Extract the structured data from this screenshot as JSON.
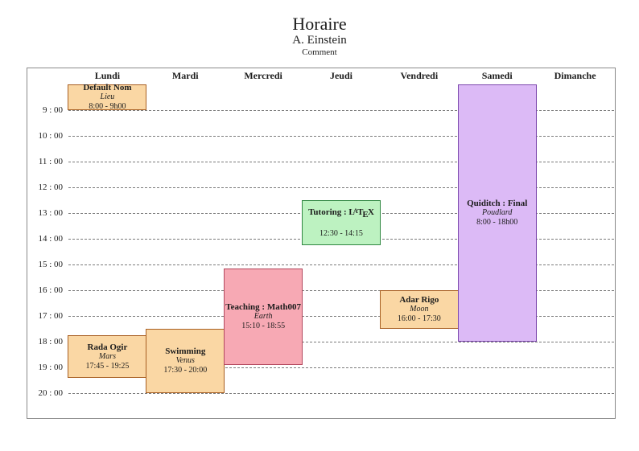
{
  "header": {
    "title": "Horaire",
    "author": "A. Einstein",
    "comment": "Comment"
  },
  "colors": {
    "frame_border": "#8a8a8a",
    "grid_line": "#7a7a7a",
    "text": "#1c1c1c",
    "orange_fill": "#fad7a4",
    "orange_border": "#a85f22",
    "pink_fill": "#f7a9b4",
    "pink_border": "#b3485e",
    "green_fill": "#bdf2c1",
    "green_border": "#2f8741",
    "purple_fill": "#dcbaf6",
    "purple_border": "#7c48ad"
  },
  "schedule": {
    "days": [
      "Lundi",
      "Mardi",
      "Mercredi",
      "Jeudi",
      "Vendredi",
      "Samedi",
      "Dimanche"
    ],
    "hour_labels": [
      "9 : 00",
      "10 : 00",
      "11 : 00",
      "12 : 00",
      "13 : 00",
      "14 : 00",
      "15 : 00",
      "16 : 00",
      "17 : 00",
      "18 : 00",
      "19 : 00",
      "20 : 00"
    ],
    "first_hour": 8,
    "events": [
      {
        "day": 0,
        "title": "Default Nom",
        "location": "Lieu",
        "time": "8:00 - 9h00",
        "start": 8,
        "end": 9,
        "fill": "#fad7a4",
        "border": "#a85f22"
      },
      {
        "day": 0,
        "title": "Rada Ogir",
        "location": "Mars",
        "time": "17:45 - 19:25",
        "start": 17.75,
        "end": 19.4167,
        "fill": "#fad7a4",
        "border": "#a85f22"
      },
      {
        "day": 1,
        "title": "Swimming",
        "location": "Venus",
        "time": "17:30 - 20:00",
        "start": 17.5,
        "end": 20,
        "fill": "#fad7a4",
        "border": "#a85f22"
      },
      {
        "day": 2,
        "title": "Teaching : Math007",
        "location": "Earth",
        "time": "15:10 - 18:55",
        "start": 15.1667,
        "end": 18.9167,
        "fill": "#f7a9b4",
        "border": "#b3485e"
      },
      {
        "day": 3,
        "title": "Tutoring : LaTeX",
        "latex_logo": true,
        "location": "",
        "time": "12:30 - 14:15",
        "start": 12.5,
        "end": 14.25,
        "fill": "#bdf2c1",
        "border": "#2f8741"
      },
      {
        "day": 4,
        "title": "Adar Rigo",
        "location": "Moon",
        "time": "16:00 - 17:30",
        "start": 16,
        "end": 17.5,
        "fill": "#fad7a4",
        "border": "#a85f22"
      },
      {
        "day": 5,
        "title": "Quiditch : Final",
        "location": "Poudlard",
        "time": "8:00 - 18h00",
        "start": 8,
        "end": 18,
        "fill": "#dcbaf6",
        "border": "#7c48ad"
      }
    ]
  }
}
